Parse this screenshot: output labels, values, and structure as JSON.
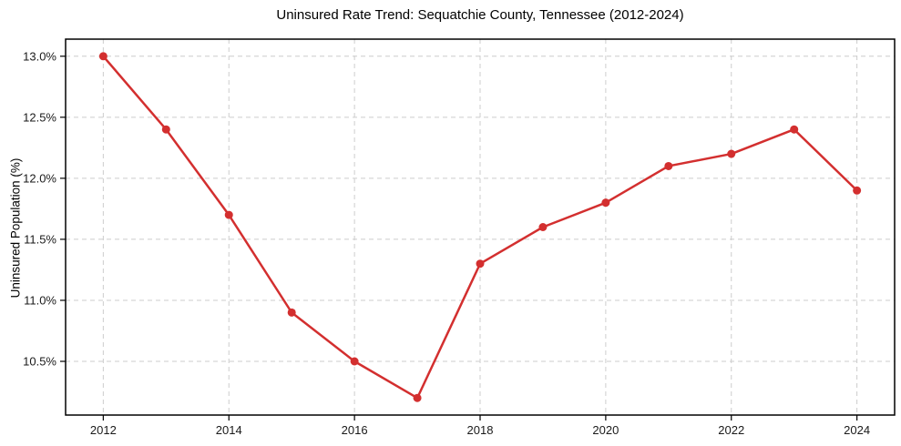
{
  "chart_data": {
    "type": "line",
    "title": "Uninsured Rate Trend: Sequatchie County, Tennessee (2012-2024)",
    "xlabel": "",
    "ylabel": "Uninsured Population (%)",
    "x": [
      2012,
      2013,
      2014,
      2015,
      2016,
      2017,
      2018,
      2019,
      2020,
      2021,
      2022,
      2023,
      2024
    ],
    "values": [
      13.0,
      12.4,
      11.7,
      10.9,
      10.5,
      10.2,
      11.3,
      11.6,
      11.8,
      12.1,
      12.2,
      12.4,
      11.9
    ],
    "xlim": [
      2011.4,
      2024.6
    ],
    "ylim": [
      10.06,
      13.14
    ],
    "x_ticks": {
      "values": [
        2012,
        2014,
        2016,
        2018,
        2020,
        2022,
        2024
      ],
      "labels": [
        "2012",
        "2014",
        "2016",
        "2018",
        "2020",
        "2022",
        "2024"
      ]
    },
    "y_ticks": {
      "values": [
        10.5,
        11.0,
        11.5,
        12.0,
        12.5,
        13.0
      ],
      "labels": [
        "10.5%",
        "11.0%",
        "11.5%",
        "12.0%",
        "12.5%",
        "13.0%"
      ]
    },
    "grid": "dashed-both-axes",
    "legend": "none",
    "marker": "circle",
    "colors": {
      "line": "#d32f2f",
      "marker": "#d32f2f",
      "grid": "#cccccc",
      "spine": "#000000",
      "tick_text": "#1a1a1a",
      "background": "#ffffff"
    }
  }
}
